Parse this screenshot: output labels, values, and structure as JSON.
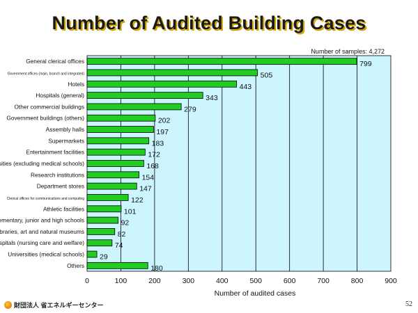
{
  "title": "Number of Audited Building Cases",
  "footer": {
    "organization": "財団法人 省エネルギーセンター",
    "page_number": "52"
  },
  "chart_data": {
    "type": "bar",
    "orientation": "horizontal",
    "title": "Number of Audited Building Cases",
    "annotation": "Number of samples: 4,272",
    "xlabel": "Number of audited cases",
    "ylabel": "",
    "xlim": [
      0,
      900
    ],
    "xticks": [
      0,
      100,
      200,
      300,
      400,
      500,
      600,
      700,
      800,
      900
    ],
    "grid": true,
    "colors": {
      "bar": "#22cc22",
      "plot_bg": "#ccf5ff",
      "grid": "#000000"
    },
    "categories": [
      "General clerical offices",
      "Government offices (main, branch and integrated)",
      "Hotels",
      "Hospitals (general)",
      "Other commercial buildings",
      "Government buildings (others)",
      "Assembly halls",
      "Supermarkets",
      "Entertainment facilities",
      "Universities (excluding medical schools)",
      "Research institutions",
      "Department stores",
      "Clerical offices for communications and computing",
      "Athletic facilities",
      "Elementary, junior and high schools",
      "Libraries, art and natural museums",
      "Hospitals (nursing care and welfare)",
      "Universities (medical schools)",
      "Others"
    ],
    "values": [
      799,
      505,
      443,
      343,
      279,
      202,
      197,
      183,
      172,
      168,
      154,
      147,
      122,
      101,
      92,
      82,
      74,
      29,
      180
    ]
  }
}
